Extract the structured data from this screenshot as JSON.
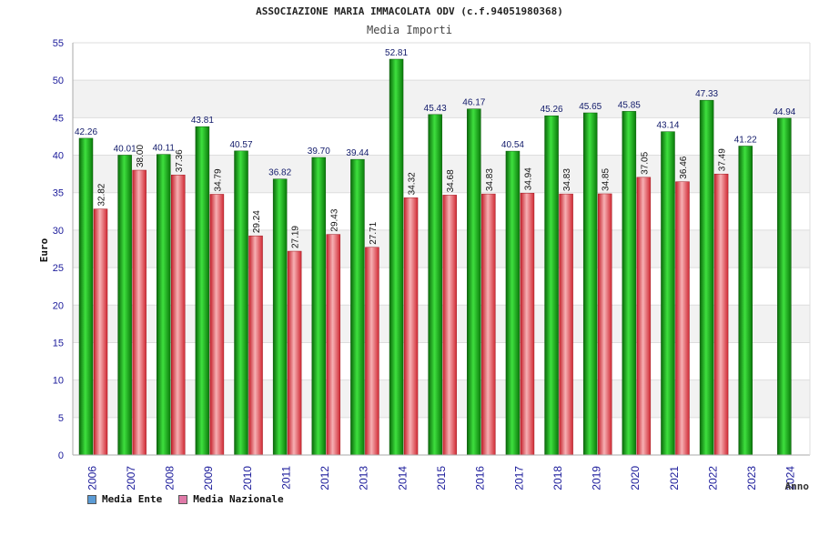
{
  "chart_data": {
    "type": "bar",
    "title": "ASSOCIAZIONE MARIA IMMACOLATA ODV (c.f.94051980368)",
    "subtitle": "Media Importi",
    "ylabel": "Euro",
    "xlabel": "Anno",
    "ylim": [
      0,
      55
    ],
    "yticks": [
      0,
      5,
      10,
      15,
      20,
      25,
      30,
      35,
      40,
      45,
      50,
      55
    ],
    "grid": true,
    "legend_position": "bottom-left",
    "categories": [
      "2006",
      "2007",
      "2008",
      "2009",
      "2010",
      "2011",
      "2012",
      "2013",
      "2014",
      "2015",
      "2016",
      "2017",
      "2018",
      "2019",
      "2020",
      "2021",
      "2022",
      "2023",
      "2024"
    ],
    "series": [
      {
        "name": "Media Ente",
        "color": "#1aa31a",
        "swatch_color": "#5b9bd5",
        "values": [
          42.26,
          40.01,
          40.11,
          43.81,
          40.57,
          36.82,
          39.7,
          39.44,
          52.81,
          45.43,
          46.17,
          40.54,
          45.26,
          45.65,
          45.85,
          43.14,
          47.33,
          41.22,
          44.94
        ],
        "labels": [
          "42.26",
          "40.01",
          "40.11",
          "43.81",
          "40.57",
          "36.82",
          "39.70",
          "39.44",
          "52.81",
          "45.43",
          "46.17",
          "40.54",
          "45.26",
          "45.65",
          "45.85",
          "43.14",
          "47.33",
          "41.22",
          "44.94"
        ]
      },
      {
        "name": "Media Nazionale",
        "color": "#e0303a",
        "swatch_color": "#e07aa8",
        "values": [
          32.82,
          38.0,
          37.36,
          34.79,
          29.24,
          27.19,
          29.43,
          27.71,
          34.32,
          34.68,
          34.83,
          34.94,
          34.83,
          34.85,
          37.05,
          36.46,
          37.49,
          null,
          null
        ],
        "labels": [
          "32.82",
          "38.00",
          "37.36",
          "34.79",
          "29.24",
          "27.19",
          "29.43",
          "27.71",
          "34.32",
          "34.68",
          "34.83",
          "34.94",
          "34.83",
          "34.85",
          "37.05",
          "36.46",
          "37.49",
          "",
          ""
        ]
      }
    ]
  }
}
